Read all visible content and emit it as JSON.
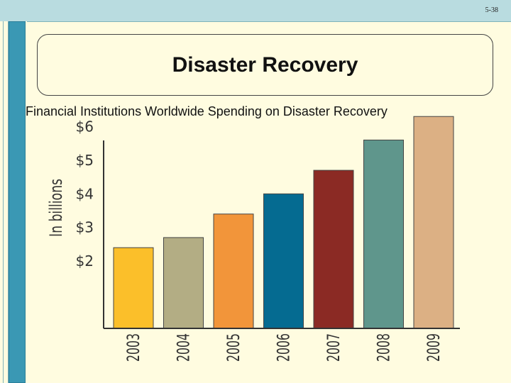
{
  "slide": {
    "number": "5-38"
  },
  "title": "Disaster Recovery",
  "subtitle": "Financial Institutions Worldwide Spending on Disaster Recovery",
  "chart_data": {
    "type": "bar",
    "ylabel": "In billions",
    "categories": [
      "2003",
      "2004",
      "2005",
      "2006",
      "2007",
      "2008",
      "2009"
    ],
    "values": [
      2.4,
      2.7,
      3.4,
      4.0,
      4.7,
      5.6,
      6.3
    ],
    "colors": [
      "#fbbf2a",
      "#b3ad84",
      "#f2953a",
      "#056b91",
      "#8b2a24",
      "#5f968c",
      "#dcb084"
    ],
    "y_ticks": [
      {
        "value": 2,
        "label": "$2"
      },
      {
        "value": 3,
        "label": "$3"
      },
      {
        "value": 4,
        "label": "$4"
      },
      {
        "value": 5,
        "label": "$5"
      },
      {
        "value": 6,
        "label": "$6"
      }
    ],
    "ylim": [
      0.0,
      6.6
    ],
    "grid": false
  }
}
